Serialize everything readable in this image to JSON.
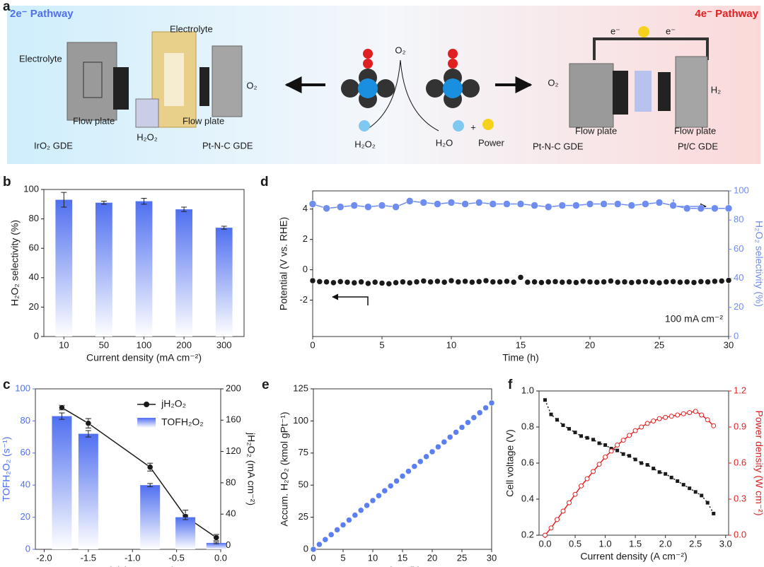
{
  "panel_a": {
    "label": "a",
    "left_title": "2e⁻ Pathway",
    "right_title": "4e⁻ Pathway",
    "labels": [
      "Electrolyte",
      "Electrolyte",
      "Flow plate",
      "Flow plate",
      "H₂O₂",
      "IrO₂ GDE",
      "Pt-N-C GDE",
      "O₂",
      "O₂",
      "H₂O₂",
      "H₂O",
      "+",
      "Power",
      "e⁻",
      "e⁻",
      "O₂",
      "H₂",
      "Flow plate",
      "Flow plate",
      "Pt-N-C GDE",
      "Pt/C GDE"
    ]
  },
  "chart_data": [
    {
      "panel_label": "b",
      "type": "bar",
      "categories": [
        "10",
        "50",
        "100",
        "200",
        "300"
      ],
      "values": [
        93,
        91,
        92,
        86.5,
        74
      ],
      "errors": [
        5,
        1,
        2,
        1.5,
        1
      ],
      "color": "#4f6ff0",
      "ylim": [
        0,
        100
      ],
      "yticks": [
        0,
        20,
        40,
        60,
        80,
        100
      ],
      "xlabel": "Current density (mA cm⁻²)",
      "ylabel": "H₂O₂ selectivity (%)"
    },
    {
      "panel_label": "d",
      "type": "line",
      "xlim": [
        0,
        30
      ],
      "xticks": [
        0,
        5,
        10,
        15,
        20,
        25,
        30
      ],
      "ylim": [
        -4.4,
        5.2
      ],
      "yticks": [
        -2,
        0,
        2,
        4
      ],
      "y2lim": [
        0,
        100
      ],
      "y2ticks": [
        0,
        20,
        40,
        60,
        80,
        100
      ],
      "xlabel": "Time (h)",
      "ylabel": "Potential (V vs. RHE)",
      "y2label": "H₂O₂ selectivity (%)",
      "annotation": "100 mA cm⁻²",
      "series": [
        {
          "color": "#1a1a1a",
          "marker": "circle",
          "line": false,
          "x": [
            0,
            0.5,
            1,
            1.5,
            2,
            2.5,
            3,
            3.5,
            4,
            4.5,
            5,
            5.5,
            6,
            6.5,
            7,
            7.5,
            8,
            8.5,
            9,
            9.5,
            10,
            10.5,
            11,
            11.5,
            12,
            12.5,
            13,
            13.5,
            14,
            14.5,
            15,
            15.5,
            16,
            16.5,
            17,
            17.5,
            18,
            18.5,
            19,
            19.5,
            20,
            20.5,
            21,
            21.5,
            22,
            22.5,
            23,
            23.5,
            24,
            24.5,
            25,
            25.5,
            26,
            26.5,
            27,
            27.5,
            28,
            28.5,
            29,
            29.5,
            30
          ],
          "values": [
            -0.72,
            -0.78,
            -0.8,
            -0.85,
            -0.78,
            -0.82,
            -0.86,
            -0.8,
            -0.9,
            -0.82,
            -0.88,
            -0.92,
            -0.85,
            -0.8,
            -0.86,
            -0.8,
            -0.74,
            -0.8,
            -0.76,
            -0.82,
            -0.72,
            -0.8,
            -0.76,
            -0.82,
            -0.78,
            -0.72,
            -0.8,
            -0.8,
            -0.76,
            -0.82,
            -0.5,
            -0.82,
            -0.8,
            -0.84,
            -0.8,
            -0.78,
            -0.82,
            -0.8,
            -0.84,
            -0.76,
            -0.8,
            -0.82,
            -0.8,
            -0.74,
            -0.82,
            -0.8,
            -0.84,
            -0.8,
            -0.78,
            -0.82,
            -0.86,
            -0.8,
            -0.78,
            -0.82,
            -0.8,
            -0.84,
            -0.78,
            -0.8,
            -0.76,
            -0.74,
            -0.7
          ]
        },
        {
          "color": "#6f8cf0",
          "axis": "y2",
          "marker": "circle",
          "line": true,
          "x": [
            0,
            1,
            2,
            3,
            4,
            5,
            6,
            7,
            8,
            9,
            10,
            11,
            12,
            13,
            14,
            15,
            16,
            17,
            18,
            19,
            20,
            21,
            22,
            23,
            24,
            25,
            26,
            27,
            28,
            29,
            30
          ],
          "values": [
            91,
            88,
            89,
            90,
            89,
            90,
            89,
            93,
            92,
            91,
            92,
            91,
            92,
            91,
            91,
            91,
            90,
            89,
            90,
            90,
            91,
            91,
            91,
            90,
            91,
            92,
            90,
            88,
            88,
            88,
            88
          ]
        }
      ]
    },
    {
      "panel_label": "c",
      "type": "bar",
      "xlim": [
        -2.1,
        0.0
      ],
      "xticks": [
        {
          "value": -2,
          "label": "-2.0"
        },
        -1.5,
        {
          "value": -1,
          "label": "-1.0"
        },
        -0.5,
        {
          "value": 0,
          "label": "0.0"
        }
      ],
      "ylim": [
        0,
        100
      ],
      "yticks": [
        0,
        20,
        40,
        60,
        80,
        100
      ],
      "y2lim": [
        -5,
        200
      ],
      "y2ticks": [
        0,
        40,
        80,
        120,
        160,
        200
      ],
      "xlabel": "Potential (V vs. RHE)",
      "ylabel": "TOFH₂O₂ (s⁻¹)",
      "y2label": "jH₂O₂ (mA cm⁻²)",
      "legend": "upper right",
      "series": [
        {
          "name": "jH₂O₂",
          "type": "line",
          "axis": "y2",
          "color": "#1a1a1a",
          "marker": "circle",
          "line": true,
          "x": [
            -1.8,
            -1.5,
            -0.8,
            -0.4,
            -0.05
          ],
          "values": [
            176,
            156,
            100,
            37,
            10
          ],
          "errors": [
            3,
            6,
            5,
            8,
            4
          ]
        },
        {
          "name": "TOFH₂O₂",
          "type": "bar",
          "color": "#4f6ff0",
          "x": [
            -1.8,
            -1.5,
            -0.8,
            -0.4,
            -0.05
          ],
          "values": [
            83,
            72,
            40,
            20,
            4
          ],
          "errors": [
            2,
            2,
            1,
            1.5,
            0.5
          ]
        }
      ]
    },
    {
      "panel_label": "e",
      "type": "scatter",
      "xlim": [
        0,
        30
      ],
      "xticks": [
        0,
        5,
        10,
        15,
        20,
        25,
        30
      ],
      "ylim": [
        0,
        125
      ],
      "yticks": [
        0,
        25,
        50,
        75,
        100,
        125
      ],
      "xlabel": "Time (h)",
      "ylabel": "Accum. H₂O₂ (kmol gPt⁻¹)",
      "series": [
        {
          "color": "#5b7ff0",
          "marker": "circle",
          "line": false,
          "x": [
            0,
            1,
            2,
            3,
            4,
            5,
            6,
            7,
            8,
            9,
            10,
            11,
            12,
            13,
            14,
            15,
            16,
            17,
            18,
            19,
            20,
            21,
            22,
            23,
            24,
            25,
            26,
            27,
            28,
            29,
            30
          ],
          "values": [
            0,
            3.8,
            7.6,
            11.4,
            15.2,
            19,
            22.8,
            26.6,
            30.4,
            34.2,
            38,
            41.8,
            45.6,
            49.4,
            53.2,
            57,
            60.8,
            64.6,
            68.4,
            72.2,
            76,
            79.8,
            83.6,
            87.4,
            91.2,
            95,
            98.8,
            102.6,
            106.4,
            110.2,
            114
          ]
        }
      ]
    },
    {
      "panel_label": "f",
      "type": "line",
      "xlim": [
        -0.1,
        3.05
      ],
      "xticks": [
        {
          "value": 0,
          "label": "0.0"
        },
        0.5,
        {
          "value": 1,
          "label": "1.0"
        },
        1.5,
        {
          "value": 2,
          "label": "2.0"
        },
        2.5,
        {
          "value": 3,
          "label": "3.0"
        }
      ],
      "ylim": [
        0.2,
        1.0
      ],
      "yticks": [
        0.2,
        0.4,
        0.6,
        0.8,
        {
          "value": 1,
          "label": "1.0"
        }
      ],
      "y2lim": [
        0,
        1.2
      ],
      "y2ticks": [
        {
          "value": 0,
          "label": "0.0"
        },
        0.3,
        0.6,
        0.9,
        1.2
      ],
      "xlabel": "Current density (A cm⁻²)",
      "ylabel": "Cell voltage (V)",
      "y2label": "Power density (W cm⁻²)",
      "series": [
        {
          "color": "#1a1a1a",
          "marker": "square",
          "line": true,
          "line_style": "dotted",
          "x": [
            0,
            0.1,
            0.2,
            0.3,
            0.4,
            0.5,
            0.6,
            0.7,
            0.8,
            0.9,
            1,
            1.1,
            1.2,
            1.3,
            1.4,
            1.5,
            1.6,
            1.7,
            1.8,
            1.9,
            2,
            2.1,
            2.2,
            2.3,
            2.4,
            2.5,
            2.6,
            2.7,
            2.8
          ],
          "values": [
            0.95,
            0.87,
            0.84,
            0.81,
            0.79,
            0.77,
            0.75,
            0.74,
            0.73,
            0.71,
            0.7,
            0.68,
            0.67,
            0.65,
            0.64,
            0.62,
            0.6,
            0.59,
            0.57,
            0.55,
            0.54,
            0.52,
            0.5,
            0.48,
            0.46,
            0.44,
            0.42,
            0.38,
            0.32
          ]
        },
        {
          "color": "#e02020",
          "axis": "y2",
          "marker": "open-circle",
          "line": true,
          "x": [
            0,
            0.1,
            0.2,
            0.3,
            0.4,
            0.5,
            0.6,
            0.7,
            0.8,
            0.9,
            1,
            1.1,
            1.2,
            1.3,
            1.4,
            1.5,
            1.6,
            1.7,
            1.8,
            1.9,
            2,
            2.1,
            2.2,
            2.3,
            2.4,
            2.5,
            2.6,
            2.7,
            2.8
          ],
          "values": [
            0,
            0.06,
            0.13,
            0.2,
            0.27,
            0.34,
            0.41,
            0.47,
            0.53,
            0.59,
            0.65,
            0.7,
            0.75,
            0.79,
            0.83,
            0.87,
            0.9,
            0.93,
            0.95,
            0.97,
            0.98,
            0.99,
            1.0,
            1.01,
            1.02,
            1.03,
            1.0,
            0.96,
            0.91
          ]
        }
      ]
    }
  ]
}
